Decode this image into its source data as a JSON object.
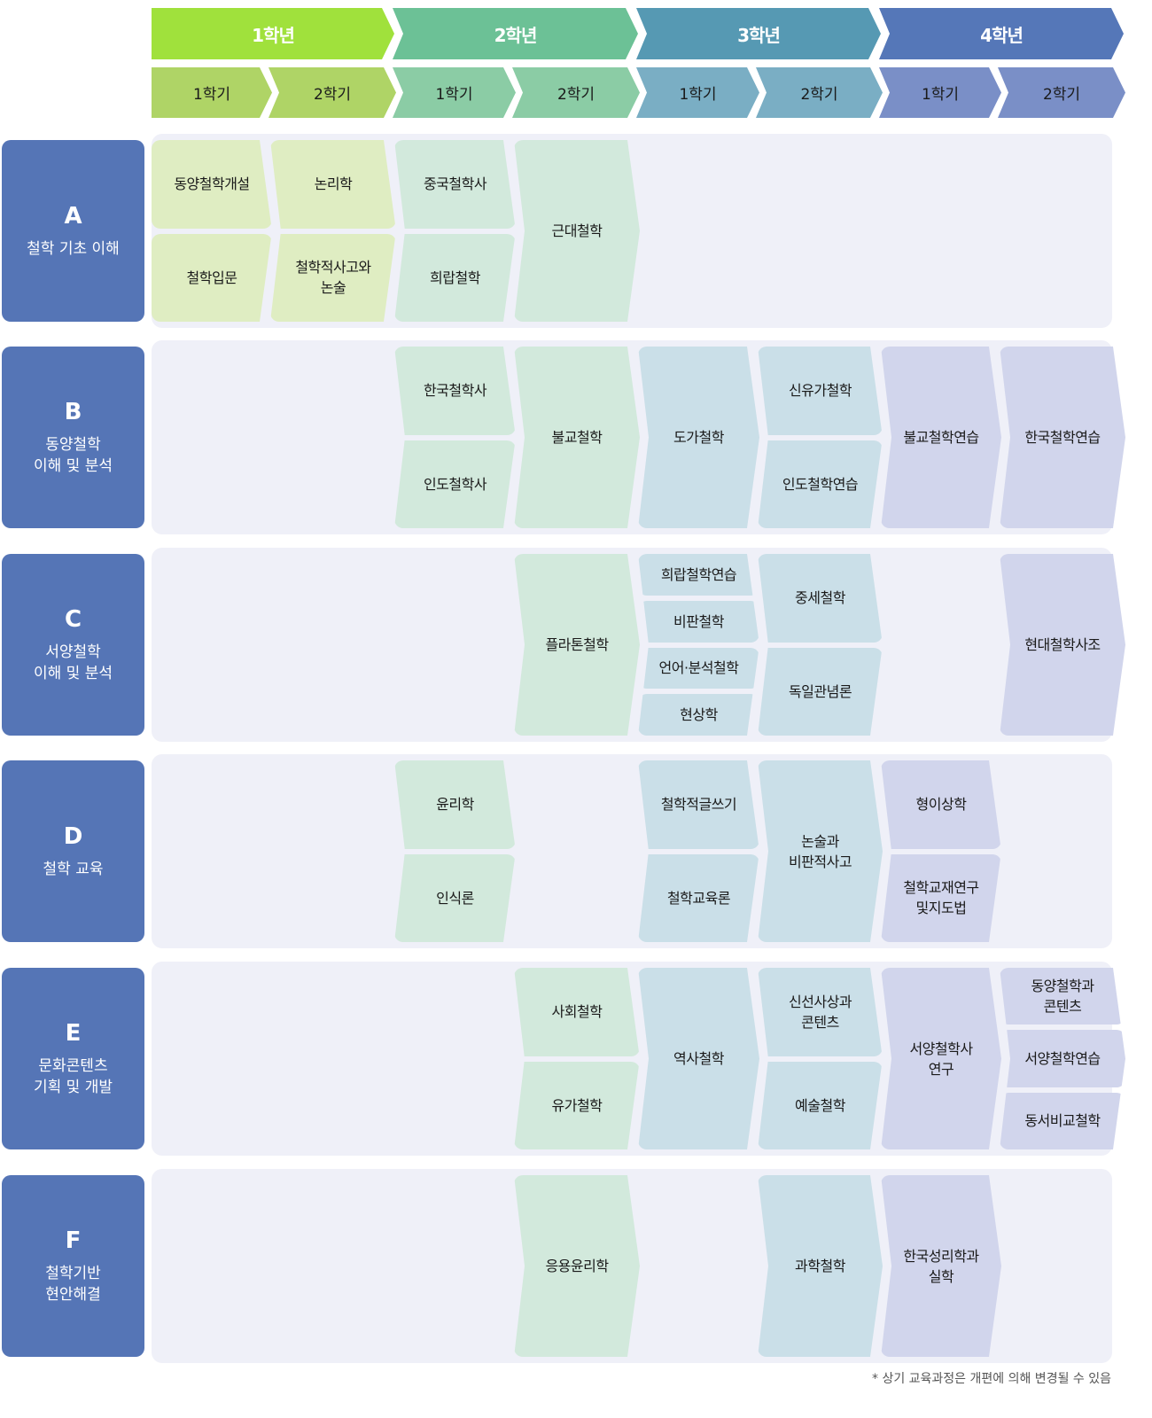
{
  "colors": {
    "year_headers": [
      "#a0e13c",
      "#6cc196",
      "#5699b3",
      "#5577b8"
    ],
    "semester_headers": [
      "#afd466",
      "#8bcca5",
      "#7aaec4",
      "#7a8fc7"
    ],
    "course_cells": [
      "#dfedc2",
      "#d2e9dc",
      "#cadfe8",
      "#d1d5ec"
    ],
    "category_box": "#5575b6",
    "panel": "#eff0f8"
  },
  "years": [
    "1학년",
    "2학년",
    "3학년",
    "4학년"
  ],
  "semesters": [
    "1학기",
    "2학기",
    "1학기",
    "2학기",
    "1학기",
    "2학기",
    "1학기",
    "2학기"
  ],
  "rows": [
    {
      "letter": "A",
      "name": "철학 기초 이해",
      "courses": [
        {
          "term": 0,
          "items": [
            "동양철학개설",
            "철학입문"
          ]
        },
        {
          "term": 1,
          "items": [
            "논리학",
            "철학적사고와\n논술"
          ]
        },
        {
          "term": 2,
          "items": [
            "중국철학사",
            "희랍철학"
          ]
        },
        {
          "term": 3,
          "items": [
            "근대철학"
          ]
        }
      ]
    },
    {
      "letter": "B",
      "name": "동양철학\n이해 및 분석",
      "courses": [
        {
          "term": 2,
          "items": [
            "한국철학사",
            "인도철학사"
          ]
        },
        {
          "term": 3,
          "items": [
            "불교철학"
          ]
        },
        {
          "term": 4,
          "items": [
            "도가철학"
          ]
        },
        {
          "term": 5,
          "items": [
            "신유가철학",
            "인도철학연습"
          ]
        },
        {
          "term": 6,
          "items": [
            "불교철학연습"
          ]
        },
        {
          "term": 7,
          "items": [
            "한국철학연습"
          ]
        }
      ]
    },
    {
      "letter": "C",
      "name": "서양철학\n이해 및 분석",
      "courses": [
        {
          "term": 3,
          "items": [
            "플라톤철학"
          ]
        },
        {
          "term": 4,
          "items": [
            "희랍철학연습",
            "비판철학",
            "언어·분석철학",
            "현상학"
          ]
        },
        {
          "term": 5,
          "items": [
            "중세철학",
            "독일관념론"
          ]
        },
        {
          "term": 7,
          "items": [
            "현대철학사조"
          ]
        }
      ]
    },
    {
      "letter": "D",
      "name": "철학 교육",
      "courses": [
        {
          "term": 2,
          "items": [
            "윤리학",
            "인식론"
          ]
        },
        {
          "term": 4,
          "items": [
            "철학적글쓰기",
            "철학교육론"
          ]
        },
        {
          "term": 5,
          "items": [
            "논술과\n비판적사고"
          ]
        },
        {
          "term": 6,
          "items": [
            "형이상학",
            "철학교재연구\n및지도법"
          ]
        }
      ]
    },
    {
      "letter": "E",
      "name": "문화콘텐츠\n기획 및 개발",
      "courses": [
        {
          "term": 3,
          "items": [
            "사회철학",
            "유가철학"
          ]
        },
        {
          "term": 4,
          "items": [
            "역사철학"
          ]
        },
        {
          "term": 5,
          "items": [
            "신선사상과\n콘텐츠",
            "예술철학"
          ]
        },
        {
          "term": 6,
          "items": [
            "서양철학사\n연구"
          ]
        },
        {
          "term": 7,
          "items": [
            "동양철학과\n콘텐츠",
            "서양철학연습",
            "동서비교철학"
          ]
        }
      ]
    },
    {
      "letter": "F",
      "name": "철학기반\n현안해결",
      "courses": [
        {
          "term": 3,
          "items": [
            "응용윤리학"
          ]
        },
        {
          "term": 5,
          "items": [
            "과학철학"
          ]
        },
        {
          "term": 6,
          "items": [
            "한국성리학과\n실학"
          ]
        }
      ]
    }
  ],
  "footnote": "* 상기 교육과정은 개편에 의해 변경될 수 있음"
}
